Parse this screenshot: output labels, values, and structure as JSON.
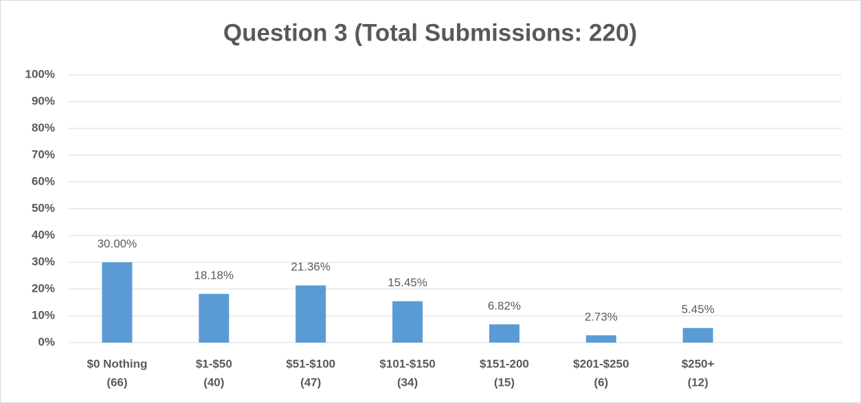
{
  "chart_data": {
    "type": "bar",
    "title": "Question 3 (Total Submissions: 220)",
    "categories": [
      [
        "$0 Nothing",
        "(66)"
      ],
      [
        "$1-$50",
        "(40)"
      ],
      [
        "$51-$100",
        "(47)"
      ],
      [
        "$101-$150",
        "(34)"
      ],
      [
        "$151-200",
        "(15)"
      ],
      [
        "$201-$250",
        "(6)"
      ],
      [
        "$250+",
        "(12)"
      ],
      null
    ],
    "values": [
      30.0,
      18.18,
      21.36,
      15.45,
      6.82,
      2.73,
      5.45,
      null
    ],
    "value_labels": [
      "30.00%",
      "18.18%",
      "21.36%",
      "15.45%",
      "6.82%",
      "2.73%",
      "5.45%",
      null
    ],
    "color": "#5b9bd5",
    "ylim": [
      0,
      100
    ],
    "yticks": [
      {
        "value": 0,
        "label": "0%"
      },
      {
        "value": 10,
        "label": "10%"
      },
      {
        "value": 20,
        "label": "20%"
      },
      {
        "value": 30,
        "label": "30%"
      },
      {
        "value": 40,
        "label": "40%"
      },
      {
        "value": 50,
        "label": "50%"
      },
      {
        "value": 60,
        "label": "60%"
      },
      {
        "value": 70,
        "label": "70%"
      },
      {
        "value": 80,
        "label": "80%"
      },
      {
        "value": 90,
        "label": "90%"
      },
      {
        "value": 100,
        "label": "100%"
      }
    ],
    "grid": true
  }
}
